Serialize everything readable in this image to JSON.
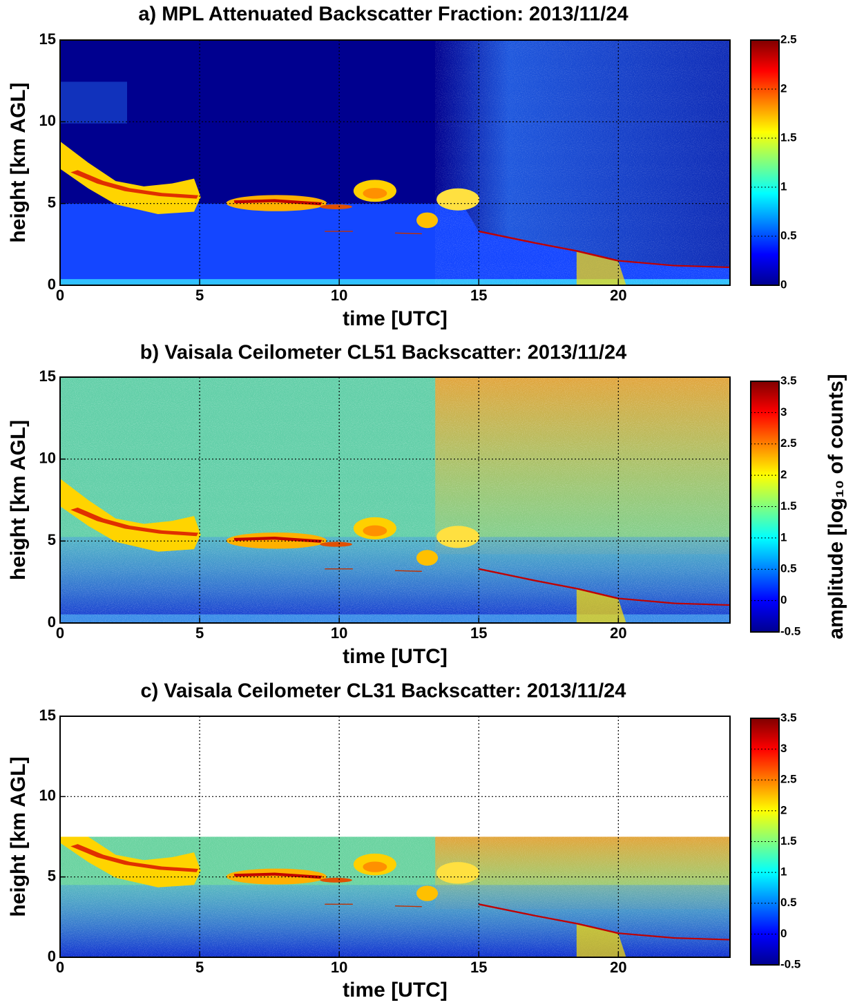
{
  "chart_data": [
    {
      "type": "heatmap",
      "title": "a) MPL Attenuated Backscatter Fraction: 2013/11/24",
      "xlabel": "time [UTC]",
      "ylabel": "height [km AGL]",
      "xlim": [
        0,
        24
      ],
      "ylim": [
        0,
        15
      ],
      "xticks": [
        0,
        5,
        10,
        15,
        20
      ],
      "yticks": [
        0,
        5,
        10,
        15
      ],
      "grid": true,
      "colormap": "jet",
      "clim": [
        0,
        2.5
      ],
      "cticks": [
        0,
        0.5,
        1,
        1.5,
        2,
        2.5
      ]
    },
    {
      "type": "heatmap",
      "title": "b) Vaisala Ceilometer CL51 Backscatter: 2013/11/24",
      "xlabel": "time [UTC]",
      "ylabel": "height [km AGL]",
      "xlim": [
        0,
        24
      ],
      "ylim": [
        0,
        15
      ],
      "xticks": [
        0,
        5,
        10,
        15,
        20
      ],
      "yticks": [
        0,
        5,
        10,
        15
      ],
      "grid": true,
      "colormap": "jet",
      "clim": [
        -0.5,
        3.5
      ],
      "cticks": [
        -0.5,
        0,
        0.5,
        1,
        1.5,
        2,
        2.5,
        3,
        3.5
      ],
      "colorbar_label": "amplitude [log₁₀ of counts]"
    },
    {
      "type": "heatmap",
      "title": "c) Vaisala Ceilometer CL31 Backscatter: 2013/11/24",
      "xlabel": "time [UTC]",
      "ylabel": "height [km AGL]",
      "xlim": [
        0,
        24
      ],
      "ylim": [
        0,
        15
      ],
      "xticks": [
        0,
        5,
        10,
        15,
        20
      ],
      "yticks": [
        0,
        5,
        10,
        15
      ],
      "grid": true,
      "colormap": "jet",
      "clim": [
        -0.5,
        3.5
      ],
      "cticks": [
        -0.5,
        0,
        0.5,
        1,
        1.5,
        2,
        2.5,
        3,
        3.5
      ]
    }
  ]
}
